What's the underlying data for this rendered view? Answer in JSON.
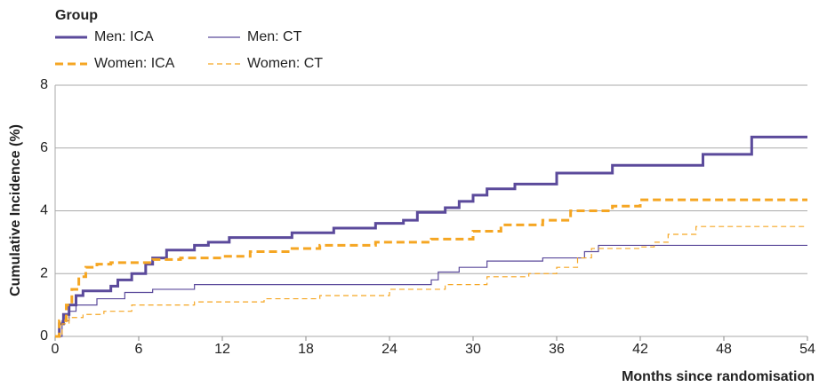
{
  "chart_data": {
    "type": "line",
    "step": true,
    "legend_title": "Group",
    "ylabel": "Cumulative Incidence (%)",
    "xlabel": "Months since randomisation",
    "xlim": [
      0,
      54
    ],
    "xticks": [
      0,
      6,
      12,
      18,
      24,
      30,
      36,
      42,
      48,
      54
    ],
    "ylim": [
      0,
      8
    ],
    "yticks": [
      0,
      2,
      4,
      6,
      8
    ],
    "grid": true,
    "series": [
      {
        "name": "Men: ICA",
        "color": "#5b4a9b",
        "width": 3,
        "dashed": false,
        "x": [
          0,
          0.3,
          0.6,
          1,
          1.5,
          2,
          4,
          4.5,
          5.5,
          6.5,
          7,
          8,
          10,
          11,
          12.5,
          17,
          20,
          23,
          25,
          26,
          28,
          29,
          30,
          31,
          33,
          36,
          40,
          46.5,
          50,
          54
        ],
        "values": [
          0,
          0.4,
          0.7,
          1.0,
          1.3,
          1.45,
          1.6,
          1.8,
          2.0,
          2.3,
          2.5,
          2.75,
          2.9,
          3.0,
          3.15,
          3.3,
          3.45,
          3.6,
          3.7,
          3.95,
          4.1,
          4.3,
          4.5,
          4.7,
          4.85,
          5.2,
          5.45,
          5.8,
          6.35,
          6.35
        ]
      },
      {
        "name": "Men: CT",
        "color": "#5b4a9b",
        "width": 1.2,
        "dashed": false,
        "x": [
          0,
          0.5,
          1,
          1.5,
          3,
          5,
          7,
          10,
          27,
          27.5,
          29,
          31,
          35,
          38,
          39,
          54
        ],
        "values": [
          0,
          0.5,
          0.8,
          1.0,
          1.2,
          1.4,
          1.5,
          1.65,
          1.8,
          2.05,
          2.2,
          2.4,
          2.5,
          2.7,
          2.9,
          2.9
        ]
      },
      {
        "name": "Women: ICA",
        "color": "#f5a623",
        "width": 3,
        "dashed": true,
        "x": [
          0,
          0.3,
          0.8,
          1.2,
          1.7,
          2.2,
          3,
          4,
          7,
          9,
          12,
          14,
          17,
          19,
          23,
          27,
          30,
          32,
          35,
          37,
          40,
          42,
          54
        ],
        "values": [
          0,
          0.5,
          1.0,
          1.5,
          1.9,
          2.2,
          2.3,
          2.35,
          2.45,
          2.5,
          2.55,
          2.7,
          2.8,
          2.9,
          3.0,
          3.1,
          3.35,
          3.55,
          3.7,
          4.0,
          4.15,
          4.35,
          4.35
        ]
      },
      {
        "name": "Women: CT",
        "color": "#f5a623",
        "width": 1.2,
        "dashed": true,
        "x": [
          0,
          0.5,
          1,
          2,
          3.5,
          5.5,
          10,
          15,
          19,
          24,
          28,
          31,
          34,
          36,
          37.5,
          38.5,
          42,
          43,
          44,
          46,
          54
        ],
        "values": [
          0,
          0.4,
          0.6,
          0.7,
          0.8,
          1.0,
          1.1,
          1.2,
          1.3,
          1.5,
          1.65,
          1.9,
          2.0,
          2.2,
          2.5,
          2.8,
          2.85,
          3.0,
          3.25,
          3.5,
          3.5
        ]
      }
    ]
  }
}
